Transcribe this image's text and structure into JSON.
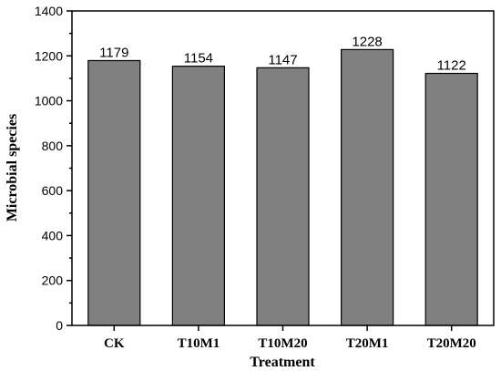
{
  "chart_data": {
    "type": "bar",
    "title": "",
    "xlabel": "Treatment",
    "ylabel": "Microbial species",
    "categories": [
      "CK",
      "T10M1",
      "T10M20",
      "T20M1",
      "T20M20"
    ],
    "values": [
      1179,
      1154,
      1147,
      1228,
      1122
    ],
    "data_labels": [
      "1179",
      "1154",
      "1147",
      "1228",
      "1122"
    ],
    "ylim": [
      0,
      1400
    ],
    "yticks": [
      0,
      200,
      400,
      600,
      800,
      1000,
      1200,
      1400
    ],
    "ytick_labels": [
      "0",
      "200",
      "400",
      "600",
      "800",
      "1000",
      "1200",
      "1400"
    ],
    "grid": false,
    "legend": "none",
    "bar_color": "#808080"
  }
}
